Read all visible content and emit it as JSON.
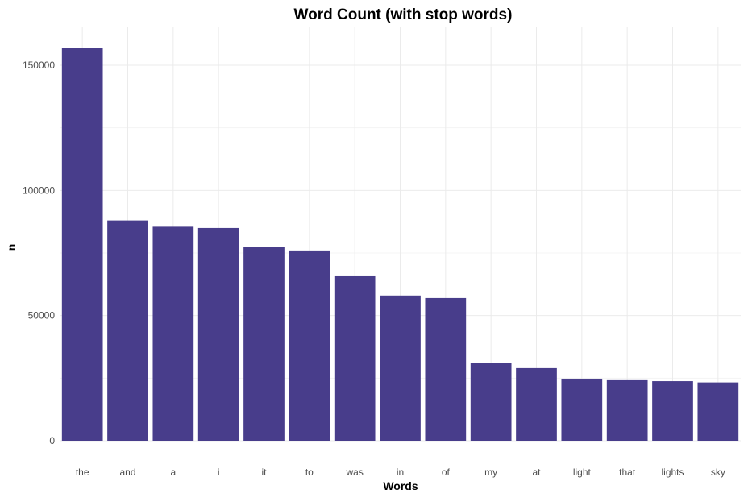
{
  "chart_data": {
    "type": "bar",
    "title": "Word Count (with stop words)",
    "xlabel": "Words",
    "ylabel": "n",
    "categories": [
      "the",
      "and",
      "a",
      "i",
      "it",
      "to",
      "was",
      "in",
      "of",
      "my",
      "at",
      "light",
      "that",
      "lights",
      "sky"
    ],
    "values": [
      157000,
      88000,
      85500,
      85000,
      77500,
      76000,
      66000,
      58000,
      57000,
      31000,
      29000,
      24800,
      24500,
      23800,
      23300
    ],
    "ylim": [
      0,
      160000
    ],
    "yticks": [
      0,
      50000,
      100000,
      150000
    ],
    "ytick_labels": [
      "0",
      "50000",
      "100000",
      "150000"
    ],
    "grid": true,
    "legend": "none",
    "bar_color": "#483d8b"
  }
}
